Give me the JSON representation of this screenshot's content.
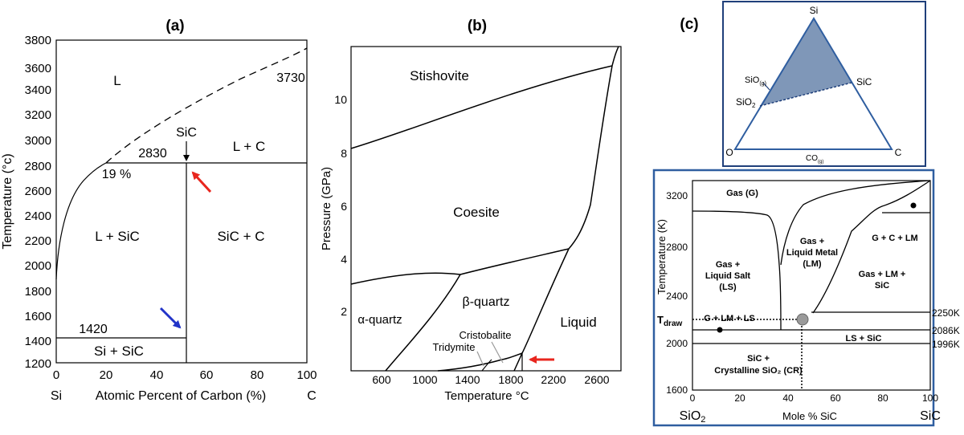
{
  "panel_a": {
    "label": "(a)",
    "ylabel": "Temperature (°c)",
    "xlabel": "Atomic Percent of Carbon (%)",
    "x_end_left": "Si",
    "x_end_right": "C",
    "y_ticks": [
      "3800",
      "3600",
      "3400",
      "3200",
      "3000",
      "2800",
      "2600",
      "2400",
      "2200",
      "2000",
      "1800",
      "1600",
      "1400",
      "1200"
    ],
    "x_ticks": [
      "0",
      "20",
      "40",
      "60",
      "80",
      "100"
    ],
    "regions": {
      "L": "L",
      "L_C": "L + C",
      "L_SiC": "L + SiC",
      "SiC_C": "SiC + C",
      "Si_SiC": "Si + SiC"
    },
    "annotations": {
      "sic": "SiC",
      "t3730": "3730",
      "t2830": "2830",
      "p19": "19 %",
      "t1420": "1420"
    }
  },
  "panel_b": {
    "label": "(b)",
    "ylabel": "Pressure (GPa)",
    "xlabel": "Temperature °C",
    "y_ticks": [
      "10",
      "8",
      "6",
      "4",
      "2"
    ],
    "x_ticks": [
      "600",
      "1000",
      "1400",
      "1800",
      "2200",
      "2600"
    ],
    "regions": {
      "stishovite": "Stishovite",
      "coesite": "Coesite",
      "alpha": "α-quartz",
      "beta": "β-quartz",
      "liquid": "Liquid",
      "cristobalite": "Cristobalite",
      "tridymite": "Tridymite"
    }
  },
  "panel_c": {
    "label": "(c)",
    "ternary": {
      "si": "Si",
      "o": "O",
      "c": "C",
      "sic": "SiC",
      "sio_g": "SiO",
      "sio_g_sub": "(g)",
      "sio2": "SiO",
      "sio2_sub": "2",
      "co_g": "CO",
      "co_g_sub": "(g)"
    },
    "ylabel": "Temperature (K)",
    "xlabel": "Mole % SiC",
    "x_end_left": "SiO",
    "x_end_left_sub": "2",
    "x_end_right": "SiC",
    "y_ticks": [
      "3200",
      "2800",
      "2400",
      "2000",
      "1600"
    ],
    "x_ticks": [
      "0",
      "20",
      "40",
      "60",
      "80",
      "100"
    ],
    "tdraw": "T",
    "tdraw_sub": "draw",
    "regions": {
      "gas": "Gas (G)",
      "gas_ls": [
        "Gas +",
        "Liquid Salt",
        "(LS)"
      ],
      "gas_lm": [
        "Gas +",
        "Liquid Metal",
        "(LM)"
      ],
      "gclm": "G + C + LM",
      "gaslmsic": [
        "Gas + LM +",
        "SiC"
      ],
      "glmls": "G + LM + LS",
      "lssic": "LS + SiC",
      "sic_cr": [
        "SiC +",
        "Crystalline SiO₂ (CR)"
      ]
    },
    "right_labels": {
      "k2250": "2250K",
      "k2086": "2086K",
      "k1996": "1996K"
    }
  },
  "colors": {
    "red_arrow": "#e8261e",
    "blue_arrow": "#2234c8",
    "frame_blue": "#2f5ea0",
    "triangle_fill": "#7f97b8",
    "marker_gray": "#9a9a9a"
  }
}
